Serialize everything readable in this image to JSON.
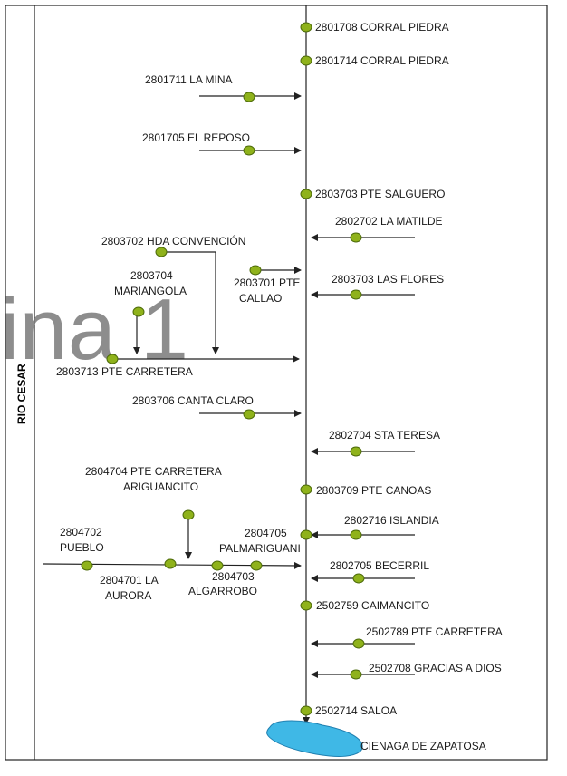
{
  "watermark": "ina 1",
  "river_label": "RIO CESAR",
  "lake_label": "CIENAGA DE ZAPATOSA",
  "colors": {
    "node": "#8fb21b",
    "lake": "#3fb8e6",
    "line": "#222222"
  },
  "stations": [
    {
      "id": "st1",
      "text": "2801708  CORRAL PIEDRA"
    },
    {
      "id": "st2",
      "text": "2801714  CORRAL PIEDRA"
    },
    {
      "id": "st3",
      "text": "2801711  LA MINA"
    },
    {
      "id": "st4",
      "text": "2801705  EL REPOSO"
    },
    {
      "id": "st5",
      "text": "2803703  PTE SALGUERO"
    },
    {
      "id": "st6",
      "text": "2802702  LA MATILDE"
    },
    {
      "id": "st7",
      "text": "2803702  HDA CONVENCIÓN"
    },
    {
      "id": "st8a",
      "text": "2803704"
    },
    {
      "id": "st8b",
      "text": "MARIANGOLA"
    },
    {
      "id": "st9a",
      "text": "2803701  PTE"
    },
    {
      "id": "st9b",
      "text": "CALLAO"
    },
    {
      "id": "st10",
      "text": "2803703  LAS FLORES"
    },
    {
      "id": "st11",
      "text": "2803713  PTE CARRETERA"
    },
    {
      "id": "st12",
      "text": "2803706  CANTA CLARO"
    },
    {
      "id": "st13",
      "text": "2802704  STA TERESA"
    },
    {
      "id": "st14a",
      "text": "2804704  PTE CARRETERA"
    },
    {
      "id": "st14b",
      "text": "ARIGUANCITO"
    },
    {
      "id": "st15",
      "text": "2803709  PTE CANOAS"
    },
    {
      "id": "st16a",
      "text": "2804702"
    },
    {
      "id": "st16b",
      "text": "PUEBLO"
    },
    {
      "id": "st17a",
      "text": "2804705"
    },
    {
      "id": "st17b",
      "text": "PALMARIGUANI"
    },
    {
      "id": "st18",
      "text": "2802716  ISLANDIA"
    },
    {
      "id": "st19a",
      "text": "2804701  LA"
    },
    {
      "id": "st19b",
      "text": "AURORA"
    },
    {
      "id": "st20a",
      "text": "2804703"
    },
    {
      "id": "st20b",
      "text": "ALGARROBO"
    },
    {
      "id": "st21",
      "text": "2802705  BECERRIL"
    },
    {
      "id": "st22",
      "text": "2502759  CAIMANCITO"
    },
    {
      "id": "st23",
      "text": "2502789  PTE CARRETERA"
    },
    {
      "id": "st24",
      "text": "2502708  GRACIAS A DIOS"
    },
    {
      "id": "st25",
      "text": "2502714  SALOA"
    }
  ]
}
